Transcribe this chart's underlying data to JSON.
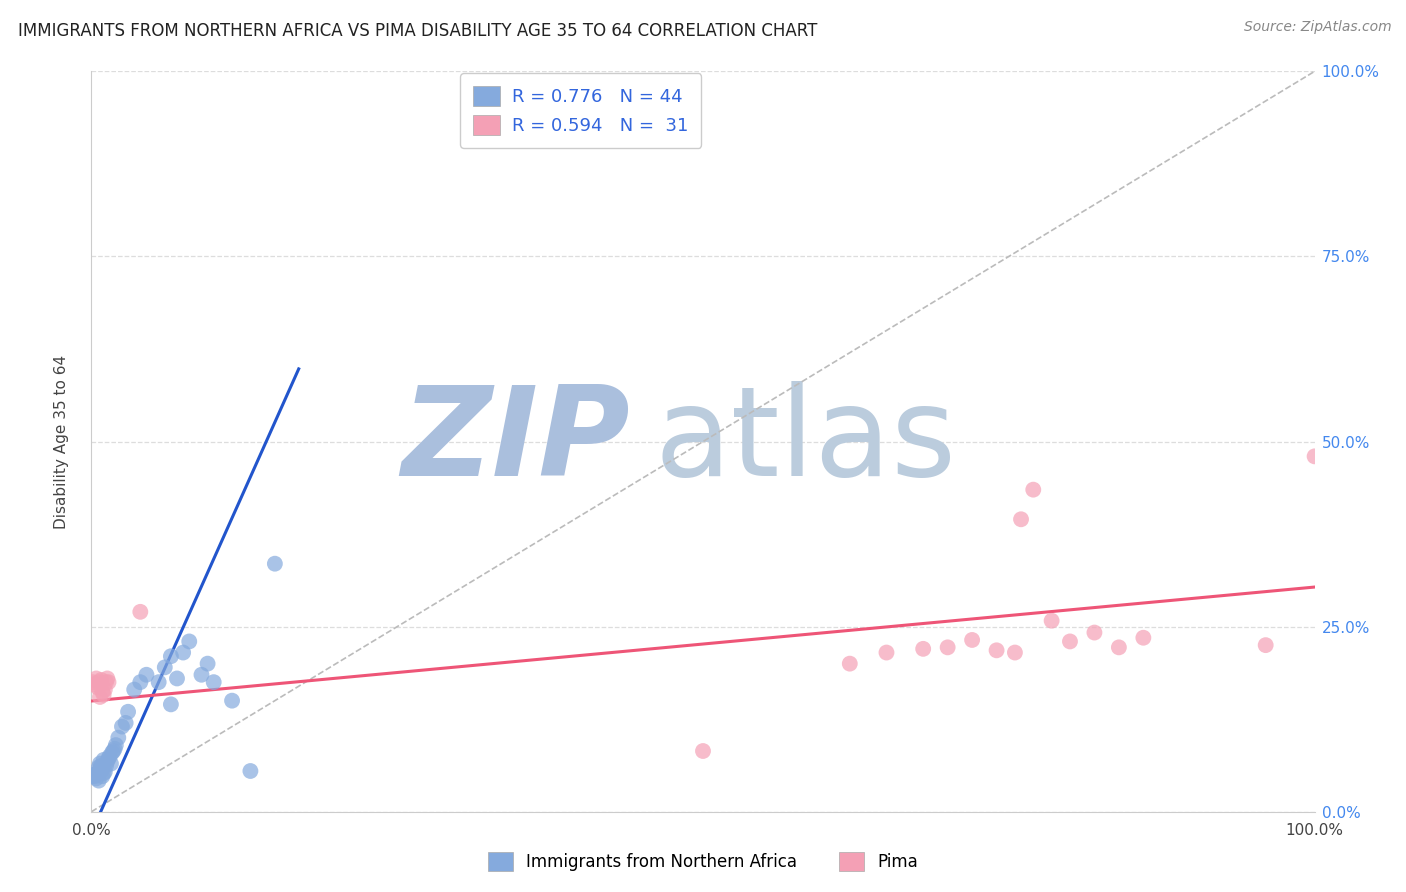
{
  "title": "IMMIGRANTS FROM NORTHERN AFRICA VS PIMA DISABILITY AGE 35 TO 64 CORRELATION CHART",
  "source_text": "Source: ZipAtlas.com",
  "ylabel": "Disability Age 35 to 64",
  "xlim": [
    0,
    1.0
  ],
  "ylim": [
    0,
    1.0
  ],
  "xtick_vals": [
    0,
    0.25,
    0.5,
    0.75,
    1.0
  ],
  "xtick_labels": [
    "0.0%",
    "",
    "",
    "",
    "100.0%"
  ],
  "ytick_vals": [
    0,
    0.25,
    0.5,
    0.75,
    1.0
  ],
  "ytick_right_labels": [
    "0.0%",
    "25.0%",
    "50.0%",
    "75.0%",
    "100.0%"
  ],
  "blue_R": "0.776",
  "blue_N": "44",
  "pink_R": "0.594",
  "pink_N": "31",
  "blue_color": "#85AADD",
  "pink_color": "#F4A0B5",
  "blue_line_color": "#2255CC",
  "pink_line_color": "#EE5577",
  "diag_color": "#BBBBBB",
  "watermark_zip_color": "#AABFDD",
  "watermark_atlas_color": "#BBCCDD",
  "right_label_color": "#4488EE",
  "legend_color": "#3366DD",
  "grid_color": "#DDDDDD",
  "blue_scatter_x": [
    0.001,
    0.002,
    0.003,
    0.004,
    0.005,
    0.006,
    0.006,
    0.007,
    0.007,
    0.008,
    0.008,
    0.009,
    0.01,
    0.01,
    0.011,
    0.012,
    0.013,
    0.014,
    0.015,
    0.016,
    0.017,
    0.018,
    0.019,
    0.02,
    0.022,
    0.025,
    0.028,
    0.03,
    0.035,
    0.04,
    0.045,
    0.055,
    0.06,
    0.065,
    0.065,
    0.07,
    0.075,
    0.08,
    0.09,
    0.095,
    0.1,
    0.115,
    0.13,
    0.15
  ],
  "blue_scatter_y": [
    0.048,
    0.05,
    0.048,
    0.045,
    0.052,
    0.042,
    0.06,
    0.058,
    0.065,
    0.062,
    0.055,
    0.048,
    0.07,
    0.052,
    0.054,
    0.062,
    0.068,
    0.072,
    0.075,
    0.065,
    0.08,
    0.082,
    0.085,
    0.09,
    0.1,
    0.115,
    0.12,
    0.135,
    0.165,
    0.175,
    0.185,
    0.175,
    0.195,
    0.145,
    0.21,
    0.18,
    0.215,
    0.23,
    0.185,
    0.2,
    0.175,
    0.15,
    0.055,
    0.335
  ],
  "pink_scatter_x": [
    0.001,
    0.002,
    0.004,
    0.005,
    0.006,
    0.007,
    0.008,
    0.009,
    0.01,
    0.011,
    0.012,
    0.013,
    0.014,
    0.04,
    0.5,
    0.62,
    0.65,
    0.68,
    0.7,
    0.72,
    0.74,
    0.755,
    0.76,
    0.77,
    0.785,
    0.8,
    0.82,
    0.84,
    0.86,
    0.96,
    1.0
  ],
  "pink_scatter_y": [
    0.175,
    0.172,
    0.18,
    0.168,
    0.175,
    0.155,
    0.178,
    0.162,
    0.158,
    0.165,
    0.175,
    0.18,
    0.175,
    0.27,
    0.082,
    0.2,
    0.215,
    0.22,
    0.222,
    0.232,
    0.218,
    0.215,
    0.395,
    0.435,
    0.258,
    0.23,
    0.242,
    0.222,
    0.235,
    0.225,
    0.48
  ],
  "blue_line_x": [
    -0.01,
    0.17
  ],
  "blue_line_y": [
    -0.065,
    0.6
  ],
  "pink_line_x": [
    -0.01,
    1.01
  ],
  "pink_line_y": [
    0.148,
    0.305
  ],
  "diag_line_x": [
    0.0,
    1.0
  ],
  "diag_line_y": [
    0.0,
    1.0
  ]
}
